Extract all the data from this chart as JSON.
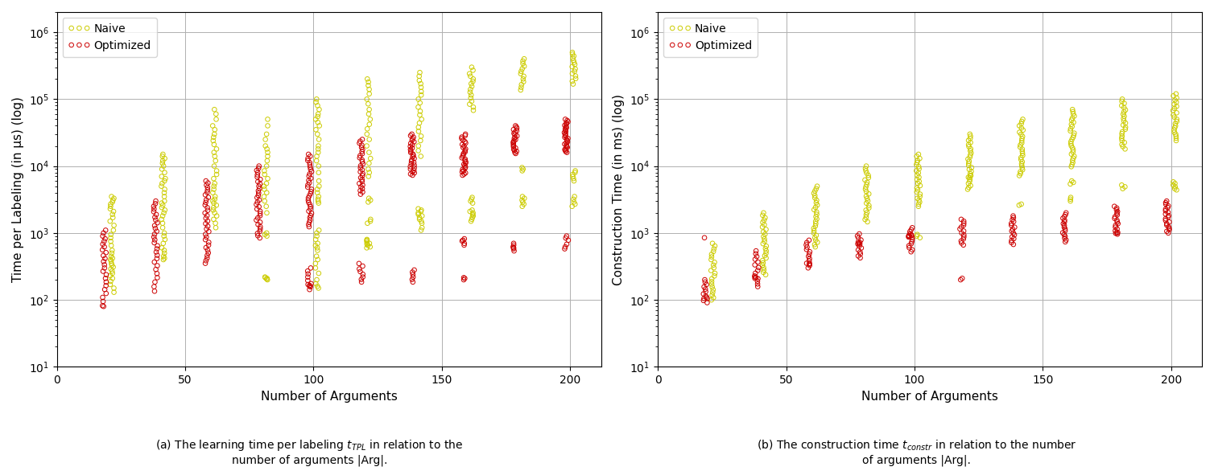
{
  "naive_color": "#cccc00",
  "optimized_color": "#cc0000",
  "background_color": "#ffffff",
  "grid_color": "#b0b0b0",
  "xlabel": "Number of Arguments",
  "ylabel_left": "Time per Labeling (in μs) (log)",
  "ylabel_right": "Construction Time (in ms) (log)",
  "x_groups": [
    20,
    40,
    60,
    80,
    100,
    120,
    140,
    160,
    180,
    200
  ],
  "naive_x_shift": 1.5,
  "opt_x_shift": -1.5,
  "jitter_x": 0.8,
  "marker_size": 16,
  "linewidth": 0.7,
  "ylim": [
    10,
    2000000
  ],
  "xlim": [
    8,
    212
  ],
  "xticks": [
    0,
    50,
    100,
    150,
    200
  ],
  "left_naive": {
    "20": [
      3500,
      3300,
      3100,
      2900,
      2700,
      2500,
      2300,
      2100,
      1900,
      1700,
      1500,
      1300,
      1100,
      950,
      850,
      750,
      650,
      550,
      500,
      450,
      420,
      400,
      380,
      350,
      330,
      310,
      290,
      270,
      250,
      230,
      210,
      190,
      170,
      150,
      130
    ],
    "40": [
      15000,
      14000,
      13000,
      12000,
      11000,
      10000,
      9000,
      8000,
      7000,
      6500,
      6000,
      5500,
      5000,
      4500,
      4000,
      3500,
      3000,
      2800,
      2600,
      2400,
      2200,
      2000,
      1800,
      1600,
      1400,
      1200,
      1000,
      900,
      800,
      700,
      600,
      550,
      500,
      450,
      420,
      400
    ],
    "60": [
      70000,
      60000,
      50000,
      40000,
      35000,
      30000,
      27000,
      24000,
      21000,
      18000,
      16000,
      14000,
      12000,
      10000,
      8500,
      7500,
      6500,
      5500,
      5000,
      4500,
      4000,
      3500,
      3200,
      3000,
      2800,
      2600,
      2400,
      2200,
      2000,
      1800,
      1600,
      1400,
      1200
    ],
    "80": [
      50000,
      40000,
      30000,
      25000,
      20000,
      18000,
      16000,
      14000,
      12000,
      10000,
      8500,
      7500,
      6500,
      5500,
      5000,
      4500,
      4000,
      3500,
      3000,
      2500,
      2000,
      1000,
      950,
      900,
      220,
      215,
      210,
      205,
      200
    ],
    "100": [
      100000,
      90000,
      80000,
      70000,
      60000,
      55000,
      50000,
      45000,
      40000,
      35000,
      30000,
      25000,
      20000,
      18000,
      16000,
      14000,
      12000,
      10000,
      8000,
      6000,
      5000,
      4500,
      4000,
      3500,
      3200,
      3000,
      2800,
      1100,
      1000,
      900,
      800,
      700,
      650,
      600,
      550,
      450,
      400,
      350,
      300,
      250,
      200,
      175,
      160,
      150
    ],
    "120": [
      200000,
      180000,
      160000,
      140000,
      120000,
      100000,
      85000,
      70000,
      60000,
      50000,
      42000,
      36000,
      30000,
      25000,
      20000,
      16000,
      13000,
      11000,
      9000,
      8000,
      7000,
      3300,
      3100,
      2900,
      1600,
      1500,
      1400,
      800,
      780,
      760,
      720,
      700,
      680,
      650,
      620,
      600
    ],
    "140": [
      250000,
      220000,
      190000,
      170000,
      150000,
      130000,
      115000,
      100000,
      88000,
      76000,
      66000,
      58000,
      50000,
      44000,
      38000,
      33000,
      28000,
      24000,
      20000,
      17000,
      14000,
      2300,
      2200,
      2100,
      2000,
      1900,
      1800,
      1700,
      1600,
      1500,
      1400,
      1200,
      1100
    ],
    "160": [
      300000,
      270000,
      240000,
      220000,
      200000,
      185000,
      170000,
      155000,
      140000,
      127000,
      115000,
      104000,
      93000,
      84000,
      76000,
      68000,
      3400,
      3200,
      3000,
      2800,
      2200,
      2100,
      2000,
      1900,
      1800,
      1700,
      1600,
      1500
    ],
    "180": [
      400000,
      370000,
      340000,
      310000,
      285000,
      260000,
      240000,
      220000,
      200000,
      182000,
      165000,
      150000,
      137000,
      9500,
      9000,
      8500,
      3500,
      3300,
      3100,
      2900,
      2700,
      2500
    ],
    "200": [
      500000,
      470000,
      440000,
      410000,
      380000,
      355000,
      330000,
      305000,
      283000,
      261000,
      241000,
      222000,
      203000,
      185000,
      168000,
      8500,
      8000,
      7500,
      7000,
      6500,
      6000,
      3500,
      3200,
      2900,
      2700,
      2500
    ]
  },
  "left_optimized": {
    "20": [
      1100,
      1000,
      900,
      820,
      750,
      680,
      620,
      560,
      510,
      460,
      415,
      375,
      335,
      300,
      268,
      238,
      210,
      185,
      163,
      143,
      125,
      109,
      95,
      82,
      80
    ],
    "40": [
      3000,
      2750,
      2500,
      2280,
      2080,
      1890,
      1720,
      1560,
      1420,
      1290,
      1170,
      1060,
      960,
      870,
      790,
      715,
      645,
      580,
      520,
      465,
      415,
      368,
      325,
      285,
      248,
      215,
      185,
      158,
      135
    ],
    "60": [
      6000,
      5600,
      5200,
      4800,
      4400,
      4050,
      3720,
      3410,
      3120,
      2860,
      2620,
      2390,
      2180,
      1990,
      1820,
      1660,
      1510,
      1380,
      1260,
      1150,
      1050,
      955,
      870,
      795,
      725,
      660,
      605,
      555,
      505,
      462,
      422,
      386,
      352
    ],
    "80": [
      10000,
      9300,
      8600,
      8000,
      7400,
      6850,
      6330,
      5850,
      5410,
      5000,
      4620,
      4270,
      3950,
      3650,
      3380,
      3120,
      2890,
      2670,
      2470,
      2280,
      2110,
      1950,
      1810,
      1680,
      1560,
      1450,
      1340,
      1240,
      1150,
      1060,
      985,
      910,
      843
    ],
    "100": [
      15000,
      14000,
      13000,
      12100,
      11200,
      10400,
      9640,
      8930,
      8270,
      7650,
      7090,
      6570,
      6090,
      5640,
      5230,
      4850,
      4500,
      4170,
      3870,
      3590,
      3330,
      3090,
      2870,
      2660,
      2470,
      2290,
      2120,
      1970,
      1820,
      1690,
      1560,
      1450,
      1340,
      1240,
      300,
      270,
      245,
      220,
      195,
      175,
      157,
      143,
      170,
      165,
      160
    ],
    "120": [
      25000,
      23500,
      22000,
      20500,
      19000,
      17700,
      16500,
      15300,
      14300,
      13300,
      12400,
      11600,
      10800,
      10100,
      9400,
      8800,
      8200,
      7700,
      7200,
      6700,
      6300,
      5900,
      5500,
      5200,
      4900,
      4600,
      4300,
      4100,
      3800,
      350,
      320,
      290,
      265,
      242,
      220,
      202,
      185
    ],
    "140": [
      30000,
      28500,
      27000,
      25600,
      24300,
      23000,
      21800,
      20700,
      19600,
      18600,
      17700,
      16800,
      15900,
      15100,
      14400,
      13700,
      13000,
      12400,
      11800,
      11300,
      10800,
      10300,
      9800,
      9400,
      9000,
      8600,
      8200,
      7900,
      7600,
      7300,
      280,
      260,
      240,
      220,
      202,
      185
    ],
    "160": [
      30000,
      28500,
      27100,
      25700,
      24400,
      23200,
      22100,
      21000,
      19900,
      18900,
      18000,
      17100,
      16200,
      15400,
      14700,
      14000,
      13300,
      12700,
      12100,
      11600,
      11100,
      10600,
      10100,
      9700,
      9300,
      8900,
      8500,
      8200,
      7900,
      7600,
      7300,
      700,
      660,
      780,
      760,
      820,
      200,
      210,
      215
    ],
    "180": [
      40000,
      38300,
      36700,
      35100,
      33600,
      32200,
      30800,
      29500,
      28200,
      27000,
      25900,
      24800,
      23800,
      22800,
      21900,
      21000,
      20200,
      19400,
      18600,
      17900,
      17200,
      16600,
      16000,
      15400,
      700,
      660,
      620,
      580,
      540,
      600
    ],
    "200": [
      50000,
      48000,
      46000,
      44100,
      42300,
      40600,
      38900,
      37300,
      35800,
      34400,
      33000,
      31700,
      30400,
      29200,
      28000,
      26900,
      25900,
      24900,
      23900,
      23000,
      22100,
      21300,
      20500,
      19700,
      19000,
      18300,
      17700,
      17100,
      16500,
      16000,
      900,
      840,
      780,
      680,
      620,
      580
    ]
  },
  "right_naive": {
    "20": [
      700,
      640,
      580,
      530,
      480,
      440,
      400,
      365,
      332,
      302,
      275,
      250,
      228,
      207,
      188,
      172,
      156,
      142,
      130,
      118,
      108,
      100
    ],
    "40": [
      2000,
      1840,
      1690,
      1560,
      1440,
      1330,
      1230,
      1130,
      1040,
      960,
      885,
      815,
      750,
      692,
      636,
      585,
      540,
      497,
      458,
      422,
      389,
      358,
      330,
      304,
      280,
      258,
      238
    ],
    "60": [
      5000,
      4600,
      4250,
      3920,
      3620,
      3340,
      3080,
      2840,
      2620,
      2420,
      2230,
      2060,
      1900,
      1750,
      1620,
      1490,
      1380,
      1270,
      1170,
      1080,
      1000,
      922,
      850,
      785,
      725,
      670,
      620
    ],
    "80": [
      10000,
      9200,
      8500,
      7850,
      7250,
      6700,
      6200,
      5720,
      5280,
      4880,
      4510,
      4160,
      3840,
      3550,
      3280,
      3020,
      2790,
      2570,
      2370,
      2190,
      2020,
      1870,
      1720,
      1590,
      1470
    ],
    "100": [
      15000,
      14000,
      13000,
      12100,
      11300,
      10500,
      9800,
      9100,
      8500,
      7900,
      7300,
      6800,
      6300,
      5900,
      5500,
      5100,
      4700,
      4400,
      4100,
      3800,
      3500,
      3300,
      3100,
      2900,
      2700,
      2500,
      950,
      900,
      850
    ],
    "120": [
      30000,
      28000,
      26000,
      24200,
      22500,
      20900,
      19500,
      18100,
      16900,
      15700,
      14600,
      13600,
      12700,
      11800,
      11000,
      10200,
      9500,
      8900,
      8300,
      7700,
      7200,
      6700,
      6300,
      5900,
      5500,
      5100,
      4800,
      4500,
      7200,
      6800
    ],
    "140": [
      50000,
      46500,
      43000,
      40000,
      37000,
      34500,
      32000,
      29800,
      27700,
      25700,
      23900,
      22200,
      20700,
      19200,
      17900,
      16600,
      15500,
      14400,
      13400,
      12500,
      11600,
      10800,
      10100,
      9400,
      8800,
      8200,
      7700,
      7200,
      2700,
      2600
    ],
    "160": [
      70000,
      65000,
      60500,
      56000,
      52000,
      48500,
      45000,
      42000,
      39000,
      36000,
      33500,
      31000,
      28900,
      26900,
      25000,
      23200,
      21600,
      20100,
      18700,
      17400,
      16200,
      15100,
      14000,
      13100,
      12200,
      11300,
      10500,
      9800,
      6000,
      5700,
      5400,
      3400,
      3200,
      3000
    ],
    "180": [
      100000,
      93000,
      86500,
      80000,
      74500,
      69000,
      64500,
      59500,
      55500,
      51500,
      47500,
      44000,
      41000,
      38000,
      35500,
      32500,
      30500,
      28000,
      26000,
      24000,
      22500,
      21000,
      19500,
      18000,
      5200,
      4900,
      4600
    ],
    "200": [
      120000,
      112000,
      104000,
      97000,
      90000,
      84000,
      78000,
      72500,
      67500,
      62500,
      58000,
      54000,
      50000,
      46500,
      43000,
      40000,
      37500,
      34500,
      32000,
      30000,
      28000,
      26000,
      24000,
      5800,
      5500,
      5200,
      4900,
      4600,
      4400
    ]
  },
  "right_optimized": {
    "20": [
      850,
      200,
      185,
      170,
      157,
      145,
      133,
      123,
      114,
      105,
      98,
      91,
      105,
      110
    ],
    "40": [
      540,
      490,
      445,
      405,
      368,
      334,
      304,
      276,
      251,
      228,
      208,
      190,
      173,
      158,
      210,
      215,
      220
    ],
    "60": [
      780,
      720,
      665,
      614,
      567,
      524,
      484,
      447,
      413,
      382,
      353,
      326,
      301,
      340,
      350
    ],
    "80": [
      970,
      905,
      843,
      787,
      734,
      685,
      639,
      597,
      557,
      520,
      486,
      454,
      425,
      700,
      720,
      680
    ],
    "100": [
      1200,
      1120,
      1050,
      977,
      912,
      851,
      793,
      741,
      691,
      645,
      602,
      561,
      524,
      898,
      920,
      940,
      870,
      890
    ],
    "120": [
      1500,
      1400,
      1310,
      1230,
      1150,
      1070,
      1000,
      934,
      872,
      813,
      759,
      709,
      662,
      1600,
      200,
      210
    ],
    "140": [
      1800,
      1690,
      1580,
      1480,
      1390,
      1300,
      1220,
      1140,
      1070,
      1000,
      940,
      878,
      823,
      770,
      720,
      675
    ],
    "160": [
      2000,
      1880,
      1770,
      1660,
      1560,
      1470,
      1380,
      1300,
      1220,
      1150,
      1080,
      1010,
      949,
      891,
      836,
      785,
      737
    ],
    "180": [
      2500,
      2360,
      2220,
      2090,
      1970,
      1860,
      1750,
      1650,
      1550,
      1460,
      1380,
      1300,
      1220,
      1150,
      1080,
      1020,
      960,
      990,
      1000
    ],
    "200": [
      3000,
      2840,
      2690,
      2540,
      2400,
      2270,
      2150,
      2030,
      1920,
      1820,
      1720,
      1630,
      1540,
      1460,
      1380,
      1310,
      1240,
      1180,
      1120,
      1000,
      1060
    ]
  }
}
